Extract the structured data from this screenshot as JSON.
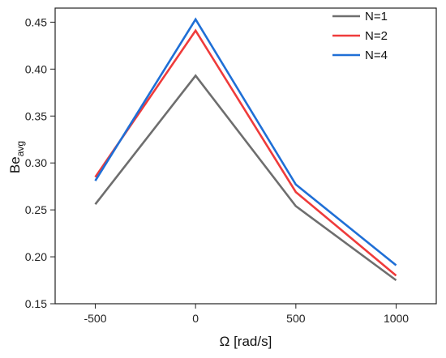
{
  "chart_data": {
    "type": "line",
    "title": "",
    "xlabel": "Ω [rad/s]",
    "ylabel_main": "Be",
    "ylabel_sub": "avg",
    "x": [
      -500,
      0,
      500,
      1000
    ],
    "xlim": [
      -700,
      1200
    ],
    "ylim": [
      0.15,
      0.465
    ],
    "xticks": [
      -500,
      0,
      500,
      1000
    ],
    "yticks": [
      0.15,
      0.2,
      0.25,
      0.3,
      0.35,
      0.4,
      0.45
    ],
    "xtick_labels": [
      "-500",
      "0",
      "500",
      "1000"
    ],
    "ytick_labels": [
      "0.15",
      "0.20",
      "0.25",
      "0.30",
      "0.35",
      "0.40",
      "0.45"
    ],
    "grid": false,
    "legend_position": "top-right",
    "series": [
      {
        "name": "N=1",
        "color": "#6e6e6e",
        "values": [
          0.256,
          0.393,
          0.254,
          0.175
        ]
      },
      {
        "name": "N=2",
        "color": "#ef3b3b",
        "values": [
          0.285,
          0.441,
          0.269,
          0.18
        ]
      },
      {
        "name": "N=4",
        "color": "#1f6fd6",
        "values": [
          0.281,
          0.453,
          0.277,
          0.191
        ]
      }
    ]
  }
}
